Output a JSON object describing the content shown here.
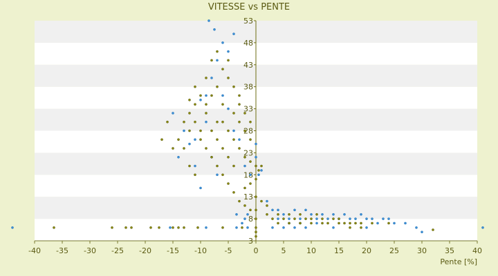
{
  "chart_data": {
    "type": "scatter",
    "title": "VITESSE vs PENTE",
    "xlabel": "Pente [%]",
    "ylabel": "",
    "xlim": [
      -40,
      40
    ],
    "ylim": [
      3,
      53
    ],
    "x_ticks": [
      -40,
      -35,
      -30,
      -25,
      -20,
      -15,
      -10,
      -5,
      0,
      5,
      10,
      15,
      20,
      25,
      30,
      35,
      40
    ],
    "y_ticks": [
      3,
      8,
      13,
      18,
      23,
      28,
      33,
      38,
      43,
      48,
      53
    ],
    "y_tick_labels": [
      "3",
      "8",
      "13",
      "18",
      "23",
      "28",
      "33",
      "38",
      "43",
      "48",
      "53"
    ],
    "grid": "horizontal bands",
    "colors": {
      "background": "#eef2cf",
      "band_light": "#ffffff",
      "band_dark": "#f0f0f0",
      "series_blue": "#3d8fd6",
      "series_olive": "#8a8a10",
      "text": "#5a5a12"
    },
    "series": [
      {
        "color": "#3d8fd6",
        "points": [
          [
            -44,
            6
          ],
          [
            -15.5,
            6
          ],
          [
            -9,
            6
          ],
          [
            -3.5,
            6
          ],
          [
            -1.5,
            6
          ],
          [
            -15,
            32
          ],
          [
            -13,
            28
          ],
          [
            -14,
            22
          ],
          [
            -12,
            25
          ],
          [
            -8,
            40
          ],
          [
            -7,
            44
          ],
          [
            -6,
            48
          ],
          [
            -5,
            46
          ],
          [
            -8.5,
            53
          ],
          [
            -7.5,
            51
          ],
          [
            -4,
            50
          ],
          [
            -11,
            20
          ],
          [
            -10,
            15
          ],
          [
            -9,
            30
          ],
          [
            -6,
            36
          ],
          [
            -5,
            33
          ],
          [
            -4,
            28
          ],
          [
            -3,
            26
          ],
          [
            -2,
            20
          ],
          [
            -1,
            18
          ],
          [
            0.5,
            18
          ],
          [
            1,
            19
          ],
          [
            0,
            22
          ],
          [
            0,
            25
          ],
          [
            -1.5,
            9
          ],
          [
            -2,
            8
          ],
          [
            -3.5,
            9
          ],
          [
            -2.5,
            7
          ],
          [
            2,
            12
          ],
          [
            3,
            10
          ],
          [
            4,
            10
          ],
          [
            4,
            8
          ],
          [
            5,
            9
          ],
          [
            6,
            8
          ],
          [
            7,
            10
          ],
          [
            8,
            8
          ],
          [
            9,
            10
          ],
          [
            10,
            9
          ],
          [
            11,
            8
          ],
          [
            12,
            9
          ],
          [
            13,
            8
          ],
          [
            14,
            9
          ],
          [
            15,
            8
          ],
          [
            16,
            9
          ],
          [
            17,
            8
          ],
          [
            18,
            8
          ],
          [
            19,
            9
          ],
          [
            20,
            8
          ],
          [
            21,
            8
          ],
          [
            22,
            7
          ],
          [
            23,
            8
          ],
          [
            24,
            8
          ],
          [
            25,
            7
          ],
          [
            27,
            7
          ],
          [
            29,
            6
          ],
          [
            14,
            6
          ],
          [
            11,
            7
          ],
          [
            9,
            6
          ],
          [
            7,
            6
          ],
          [
            6,
            7
          ],
          [
            5,
            6
          ],
          [
            3,
            6
          ],
          [
            30,
            5
          ],
          [
            20,
            6
          ],
          [
            8,
            7
          ],
          [
            41,
            6
          ],
          [
            -7,
            18
          ],
          [
            -8,
            22
          ],
          [
            -11,
            26
          ],
          [
            -10,
            35
          ],
          [
            -9,
            36
          ]
        ]
      },
      {
        "color": "#8a8a10",
        "points": [
          [
            -36.5,
            6
          ],
          [
            -26,
            6
          ],
          [
            -23.5,
            6
          ],
          [
            -22.5,
            6
          ],
          [
            -19,
            6
          ],
          [
            -17.5,
            6
          ],
          [
            -15,
            6
          ],
          [
            -14,
            6
          ],
          [
            -13,
            6
          ],
          [
            -10.5,
            6
          ],
          [
            -6,
            6
          ],
          [
            -2.5,
            6
          ],
          [
            32,
            5.5
          ],
          [
            -12,
            32
          ],
          [
            -11,
            30
          ],
          [
            -10,
            28
          ],
          [
            -9,
            34
          ],
          [
            -8,
            36
          ],
          [
            -7,
            38
          ],
          [
            -6,
            42
          ],
          [
            -5,
            40
          ],
          [
            -4,
            38
          ],
          [
            -3,
            36
          ],
          [
            -2,
            32
          ],
          [
            -1,
            30
          ],
          [
            -10,
            26
          ],
          [
            -9,
            24
          ],
          [
            -8,
            22
          ],
          [
            -7,
            20
          ],
          [
            -6,
            18
          ],
          [
            -5,
            16
          ],
          [
            -4,
            14
          ],
          [
            -3,
            12
          ],
          [
            -2,
            11
          ],
          [
            -1,
            10
          ],
          [
            -12,
            20
          ],
          [
            -11,
            18
          ],
          [
            -13,
            24
          ],
          [
            -6,
            30
          ],
          [
            -5,
            28
          ],
          [
            -4,
            26
          ],
          [
            -3,
            24
          ],
          [
            -2,
            22
          ],
          [
            -1,
            21
          ],
          [
            0,
            20
          ],
          [
            0.5,
            19
          ],
          [
            1,
            20
          ],
          [
            0,
            17
          ],
          [
            -1,
            16
          ],
          [
            -2,
            15
          ],
          [
            -8,
            44
          ],
          [
            -7,
            46
          ],
          [
            -9,
            40
          ],
          [
            -6,
            34
          ],
          [
            -7,
            30
          ],
          [
            1,
            12
          ],
          [
            2,
            11
          ],
          [
            2,
            9
          ],
          [
            3,
            8
          ],
          [
            4,
            9
          ],
          [
            5,
            8
          ],
          [
            6,
            9
          ],
          [
            7,
            8
          ],
          [
            8,
            9
          ],
          [
            9,
            8
          ],
          [
            10,
            8
          ],
          [
            11,
            9
          ],
          [
            12,
            8
          ],
          [
            13,
            7
          ],
          [
            14,
            8
          ],
          [
            15,
            8
          ],
          [
            16,
            7
          ],
          [
            17,
            7
          ],
          [
            18,
            7
          ],
          [
            19,
            7
          ],
          [
            21,
            7
          ],
          [
            24,
            7
          ],
          [
            4,
            7
          ],
          [
            6,
            7
          ],
          [
            8,
            7
          ],
          [
            10,
            7
          ],
          [
            12,
            7
          ],
          [
            15,
            7
          ],
          [
            17,
            6
          ],
          [
            19,
            6
          ],
          [
            0,
            5
          ],
          [
            0,
            4
          ],
          [
            0,
            6
          ],
          [
            0,
            8
          ],
          [
            0,
            10
          ],
          [
            0,
            13
          ],
          [
            -16,
            30
          ],
          [
            -17,
            26
          ],
          [
            -15,
            24
          ],
          [
            -13,
            30
          ],
          [
            -12,
            35
          ],
          [
            -11,
            38
          ],
          [
            -4,
            32
          ],
          [
            -3,
            30
          ],
          [
            -5,
            44
          ],
          [
            -3,
            34
          ],
          [
            -2,
            28
          ],
          [
            -1,
            26
          ],
          [
            -4,
            20
          ],
          [
            -5,
            22
          ],
          [
            -6,
            24
          ],
          [
            -7,
            26
          ],
          [
            -8,
            28
          ],
          [
            -9,
            32
          ],
          [
            -10,
            36
          ],
          [
            -11,
            34
          ],
          [
            -14,
            26
          ],
          [
            -12,
            28
          ]
        ]
      }
    ]
  }
}
